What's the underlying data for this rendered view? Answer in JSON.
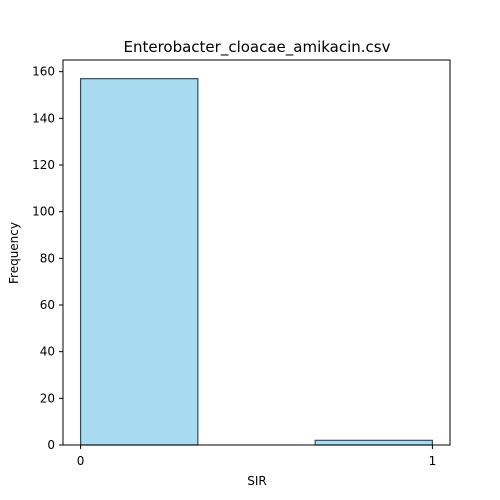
{
  "chart_data": {
    "type": "bar",
    "title": "Enterobacter_cloacae_amikacin.csv",
    "xlabel": "SIR",
    "ylabel": "Frequency",
    "xlim": [
      -0.05,
      1.05
    ],
    "ylim": [
      0,
      165
    ],
    "x_ticks": [
      0,
      1
    ],
    "y_ticks": [
      0,
      20,
      40,
      60,
      80,
      100,
      120,
      140,
      160
    ],
    "bins": [
      {
        "start": 0.0,
        "end": 0.3333,
        "value": 157
      },
      {
        "start": 0.3333,
        "end": 0.6667,
        "value": 0
      },
      {
        "start": 0.6667,
        "end": 1.0,
        "value": 2
      }
    ],
    "bar_color": "#a8dbef",
    "edge_color": "#2f4f5f",
    "grid": false,
    "legend": "none"
  }
}
